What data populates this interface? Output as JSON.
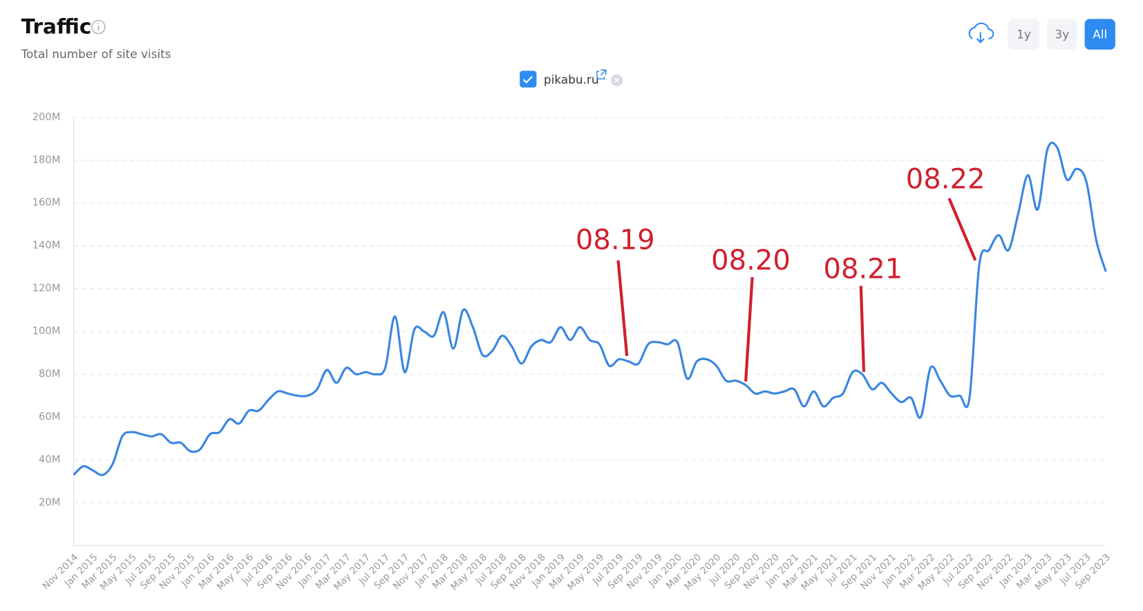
{
  "header": {
    "title": "Traffic",
    "subtitle": "Total number of site visits"
  },
  "buttons": [
    "1y",
    "3y",
    "All"
  ],
  "chart_data": {
    "type": "line",
    "series": [
      {
        "name": "pikabu.ru",
        "color": "#3a86e0",
        "values": [
          33,
          37,
          35,
          33,
          38,
          51,
          53,
          52,
          51,
          52,
          48,
          48,
          44,
          45,
          52,
          53,
          59,
          57,
          63,
          63,
          68,
          72,
          71,
          70,
          70,
          73,
          82,
          76,
          83,
          80,
          81,
          80,
          83,
          107,
          81,
          101,
          100,
          98,
          109,
          92,
          110,
          102,
          89,
          91,
          98,
          93,
          85,
          93,
          96,
          95,
          102,
          96,
          102,
          96,
          94,
          84,
          87,
          86,
          85,
          94,
          95,
          94,
          95,
          78,
          86,
          87,
          84,
          77,
          77,
          75,
          71,
          72,
          71,
          72,
          73,
          65,
          72,
          65,
          69,
          71,
          81,
          80,
          73,
          76,
          71,
          67,
          69,
          60,
          83,
          77,
          70,
          70,
          69,
          131,
          138,
          145,
          138,
          155,
          173,
          157,
          185,
          186,
          171,
          176,
          170,
          143,
          128
        ]
      }
    ],
    "categories": [
      "Nov 2014",
      null,
      "Jan 2015",
      null,
      "Mar 2015",
      null,
      "May 2015",
      null,
      "Jul 2015",
      null,
      "Sep 2015",
      null,
      "Nov 2015",
      null,
      "Jan 2016",
      null,
      "Mar 2016",
      null,
      "May 2016",
      null,
      "Jul 2016",
      null,
      "Sep 2016",
      null,
      "Nov 2016",
      null,
      "Jan 2017",
      null,
      "Mar 2017",
      null,
      "May 2017",
      null,
      "Jul 2017",
      null,
      "Sep 2017",
      null,
      "Nov 2017",
      null,
      "Jan 2018",
      null,
      "Mar 2018",
      null,
      "May 2018",
      null,
      "Jul 2018",
      null,
      "Sep 2018",
      null,
      "Nov 2018",
      null,
      "Jan 2019",
      null,
      "Mar 2019",
      null,
      "May 2019",
      null,
      "Jul 2019",
      null,
      "Sep 2019",
      null,
      "Nov 2019",
      null,
      "Jan 2020",
      null,
      "Mar 2020",
      null,
      "May 2020",
      null,
      "Jul 2020",
      null,
      "Sep 2020",
      null,
      "Nov 2020",
      null,
      "Jan 2021",
      null,
      "Mar 2021",
      null,
      "May 2021",
      null,
      "Jul 2021",
      null,
      "Sep 2021",
      null,
      "Nov 2021",
      null,
      "Jan 2022",
      null,
      "Mar 2022",
      null,
      "May 2022",
      null,
      "Jul 2022",
      null,
      "Sep 2022",
      null,
      "Nov 2022",
      null,
      "Jan 2023",
      null,
      "Mar 2023",
      null,
      "May 2023",
      null,
      "Jul 2023",
      null,
      "Sep 2023"
    ],
    "ylim": [
      0,
      200
    ],
    "yticks": [
      {
        "value": 20,
        "label": "20M"
      },
      {
        "value": 40,
        "label": "40M"
      },
      {
        "value": 60,
        "label": "60M"
      },
      {
        "value": 80,
        "label": "80M"
      },
      {
        "value": 100,
        "label": "100M"
      },
      {
        "value": 120,
        "label": "120M"
      },
      {
        "value": 140,
        "label": "140M"
      },
      {
        "value": 160,
        "label": "160M"
      },
      {
        "value": 180,
        "label": "180M"
      },
      {
        "value": 200,
        "label": "200M"
      }
    ],
    "grid": true,
    "annotations": [
      "08.19",
      "08.20",
      "08.21",
      "08.22"
    ]
  }
}
